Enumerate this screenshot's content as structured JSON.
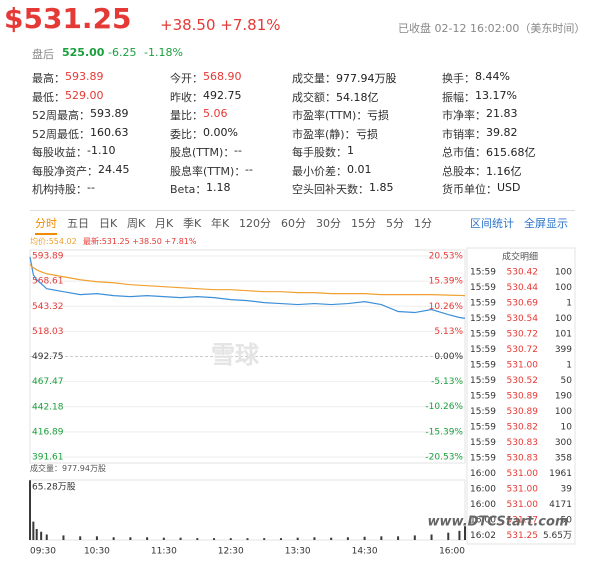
{
  "header": {
    "price": "$531.25",
    "change": "+38.50 +7.81%",
    "status": "已收盘 02-12 16:02:00（美东时间）"
  },
  "after_hours": {
    "label": "盘后",
    "price": "525.00",
    "change": "-6.25",
    "pct": "-1.18%"
  },
  "stats": [
    [
      {
        "label": "最高：",
        "value": "593.89",
        "color": "#e53935"
      },
      {
        "label": "今开：",
        "value": "568.90",
        "color": "#e53935"
      },
      {
        "label": "成交量：",
        "value": "977.94万股",
        "color": "#222"
      },
      {
        "label": "换手：",
        "value": "8.44%",
        "color": "#222"
      }
    ],
    [
      {
        "label": "最低：",
        "value": "529.00",
        "color": "#e53935"
      },
      {
        "label": "昨收：",
        "value": "492.75",
        "color": "#222"
      },
      {
        "label": "成交额：",
        "value": "54.18亿",
        "color": "#222"
      },
      {
        "label": "振幅：",
        "value": "13.17%",
        "color": "#222"
      }
    ],
    [
      {
        "label": "52周最高：",
        "value": "593.89",
        "color": "#222"
      },
      {
        "label": "量比：",
        "value": "5.06",
        "color": "#e53935"
      },
      {
        "label": "市盈率(TTM)：",
        "value": "亏损",
        "color": "#222"
      },
      {
        "label": "市净率：",
        "value": "21.83",
        "color": "#222"
      }
    ],
    [
      {
        "label": "52周最低：",
        "value": "160.63",
        "color": "#222"
      },
      {
        "label": "委比：",
        "value": "0.00%",
        "color": "#222"
      },
      {
        "label": "市盈率(静)：",
        "value": "亏损",
        "color": "#222"
      },
      {
        "label": "市销率：",
        "value": "39.82",
        "color": "#222"
      }
    ],
    [
      {
        "label": "每股收益：",
        "value": "-1.10",
        "color": "#222"
      },
      {
        "label": "股息(TTM)：",
        "value": "--",
        "color": "#222"
      },
      {
        "label": "每手股数：",
        "value": "1",
        "color": "#222"
      },
      {
        "label": "总市值：",
        "value": "615.68亿",
        "color": "#222"
      }
    ],
    [
      {
        "label": "每股净资产：",
        "value": "24.45",
        "color": "#222"
      },
      {
        "label": "股息率(TTM)：",
        "value": "--",
        "color": "#222"
      },
      {
        "label": "最小价差：",
        "value": "0.01",
        "color": "#222"
      },
      {
        "label": "总股本：",
        "value": "1.16亿",
        "color": "#222"
      }
    ],
    [
      {
        "label": "机构持股：",
        "value": "--",
        "color": "#222"
      },
      {
        "label": "Beta：",
        "value": "1.18",
        "color": "#222"
      },
      {
        "label": "空头回补天数：",
        "value": "1.85",
        "color": "#222"
      },
      {
        "label": "货币单位：",
        "value": "USD",
        "color": "#222"
      }
    ]
  ],
  "tabs": [
    "分时",
    "五日",
    "日K",
    "周K",
    "月K",
    "季K",
    "年K",
    "120分",
    "60分",
    "30分",
    "15分",
    "5分",
    "1分"
  ],
  "tabs_right": [
    "区间统计",
    "全屏显示"
  ],
  "chart_data": {
    "type": "line",
    "avg_label": "均价:554.02",
    "latest_label": "最新:531.25 +38.50 +7.81%",
    "x": [
      0,
      3,
      6,
      10,
      15,
      30,
      45,
      60,
      75,
      90,
      105,
      120,
      135,
      150,
      165,
      180,
      195,
      210,
      225,
      240,
      255,
      270,
      285,
      300,
      315,
      330,
      345,
      360,
      375,
      385,
      390
    ],
    "series": [
      {
        "color": "#3d8fd8",
        "values": [
          593,
          575,
          570,
          566,
          561,
          558,
          555,
          556,
          554,
          553,
          554,
          553,
          552,
          553,
          552,
          550,
          549,
          547,
          546,
          545,
          546,
          545,
          546,
          548,
          545,
          538,
          537,
          540,
          535,
          532,
          531.25
        ]
      },
      {
        "color": "#f0a030",
        "values": [
          585,
          582,
          580,
          578,
          576,
          573,
          570,
          568,
          567,
          565,
          564,
          563,
          562,
          561,
          560,
          560,
          559,
          558,
          558,
          557,
          557,
          556,
          556,
          556,
          555,
          555,
          555,
          555,
          554.5,
          554.2,
          554.02
        ]
      }
    ],
    "xlim": [
      0,
      390
    ],
    "xticks": [
      {
        "value": 0,
        "label": "09:30"
      },
      {
        "value": 60,
        "label": "10:30"
      },
      {
        "value": 120,
        "label": "11:30"
      },
      {
        "value": 180,
        "label": "12:30"
      },
      {
        "value": 240,
        "label": "13:30"
      },
      {
        "value": 300,
        "label": "14:30"
      },
      {
        "value": 390,
        "label": "16:00"
      }
    ],
    "ylim": [
      391.61,
      593.89
    ],
    "yticks": [
      391.61,
      416.89,
      442.18,
      467.47,
      492.75,
      518.03,
      543.32,
      568.61,
      593.89
    ],
    "y2lim": [
      -20.53,
      20.53
    ],
    "y2ticks": [
      {
        "value": -20.53,
        "label": "-20.53%"
      },
      {
        "value": -15.39,
        "label": "-15.39%"
      },
      {
        "value": -10.26,
        "label": "-10.26%"
      },
      {
        "value": -5.13,
        "label": "-5.13%"
      },
      {
        "value": 0,
        "label": "0.00%"
      },
      {
        "value": 5.13,
        "label": "5.13%"
      },
      {
        "value": 10.26,
        "label": "10.26%"
      },
      {
        "value": 15.39,
        "label": "15.39%"
      },
      {
        "value": 20.53,
        "label": "20.53%"
      }
    ],
    "grid": true,
    "volume": {
      "title": "成交量：977.94万股",
      "color": "#3a3a3a",
      "ylim": [
        0,
        65.28
      ],
      "yticks": [
        {
          "value": 65.28,
          "label": "65.28万股"
        }
      ],
      "values": [
        65,
        20,
        12,
        9,
        6,
        5,
        4,
        4,
        3,
        3,
        3,
        2.5,
        2.5,
        2,
        2,
        2,
        2,
        2,
        2,
        2.5,
        3,
        2.5,
        3,
        3.5,
        4,
        4,
        5,
        6,
        8,
        10,
        15
      ]
    }
  },
  "trades": {
    "title": "成交明细",
    "rows": [
      [
        "15:59",
        "530.42",
        "100"
      ],
      [
        "15:59",
        "530.44",
        "100"
      ],
      [
        "15:59",
        "530.69",
        "1"
      ],
      [
        "15:59",
        "530.54",
        "100"
      ],
      [
        "15:59",
        "530.72",
        "101"
      ],
      [
        "15:59",
        "530.72",
        "399"
      ],
      [
        "15:59",
        "531.00",
        "1"
      ],
      [
        "15:59",
        "530.52",
        "50"
      ],
      [
        "15:59",
        "530.89",
        "190"
      ],
      [
        "15:59",
        "530.89",
        "100"
      ],
      [
        "15:59",
        "530.82",
        "10"
      ],
      [
        "15:59",
        "530.83",
        "300"
      ],
      [
        "15:59",
        "530.83",
        "358"
      ],
      [
        "16:00",
        "531.00",
        "1961"
      ],
      [
        "16:00",
        "531.00",
        "39"
      ],
      [
        "16:00",
        "531.00",
        "4171"
      ],
      [
        "16:00",
        "531.17",
        "50"
      ],
      [
        "16:02",
        "531.25",
        "5.65万"
      ]
    ]
  },
  "watermarks": [
    "雪球",
    "www.DTCStart.com"
  ]
}
